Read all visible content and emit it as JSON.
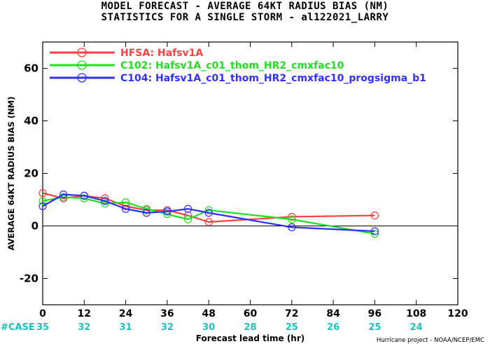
{
  "chart_data": {
    "type": "line",
    "title": "MODEL FORECAST - AVERAGE 64KT RADIUS BIAS (NM)",
    "subtitle": "STATISTICS FOR A SINGLE STORM - al122021_LARRY",
    "xlabel": "Forecast lead time (hr)",
    "ylabel": "AVERAGE 64KT RADIUS BIAS (NM)",
    "xlim": [
      0,
      120
    ],
    "ylim": [
      -30,
      70
    ],
    "x_ticks": [
      0,
      12,
      24,
      36,
      48,
      60,
      72,
      84,
      96,
      108,
      120
    ],
    "y_ticks": [
      -20,
      0,
      20,
      40,
      60
    ],
    "legend_position": "top-left",
    "series": [
      {
        "name": "HFSA: Hafsv1A",
        "color": "#ff4040",
        "x": [
          0,
          6,
          12,
          18,
          24,
          30,
          36,
          42,
          48,
          72,
          96
        ],
        "y": [
          12.5,
          10.5,
          11.5,
          10.5,
          7.5,
          6.0,
          6.0,
          4.0,
          1.5,
          3.5,
          4.0
        ]
      },
      {
        "name": "C102: Hafsv1A_c01_thom_HR2_cmxfac10",
        "color": "#22dd22",
        "x": [
          0,
          6,
          12,
          18,
          24,
          30,
          36,
          42,
          48,
          72,
          96
        ],
        "y": [
          9.5,
          11.0,
          10.5,
          8.5,
          9.0,
          6.5,
          4.5,
          2.5,
          6.0,
          2.5,
          -3.0
        ]
      },
      {
        "name": "C104: Hafsv1A_c01_thom_HR2_cmxfac10_progsigma_b1",
        "color": "#3030ff",
        "x": [
          0,
          6,
          12,
          18,
          24,
          30,
          36,
          42,
          48,
          72,
          96
        ],
        "y": [
          7.5,
          12.0,
          11.5,
          9.5,
          6.5,
          5.0,
          5.5,
          6.5,
          5.0,
          -0.5,
          -2.0
        ]
      }
    ],
    "case_label": "#CASE",
    "case_counts": [
      {
        "x": 0,
        "n": "35"
      },
      {
        "x": 12,
        "n": "32"
      },
      {
        "x": 24,
        "n": "31"
      },
      {
        "x": 36,
        "n": "32"
      },
      {
        "x": 48,
        "n": "30"
      },
      {
        "x": 60,
        "n": "28"
      },
      {
        "x": 72,
        "n": "25"
      },
      {
        "x": 84,
        "n": "26"
      },
      {
        "x": 96,
        "n": "25"
      },
      {
        "x": 108,
        "n": "24"
      }
    ],
    "footer": "Hurricane project - NOAA/NCEP/EMC"
  },
  "colors": {
    "case_text": "#20c0c0",
    "axis": "#000000",
    "zero_line": "#000000"
  }
}
